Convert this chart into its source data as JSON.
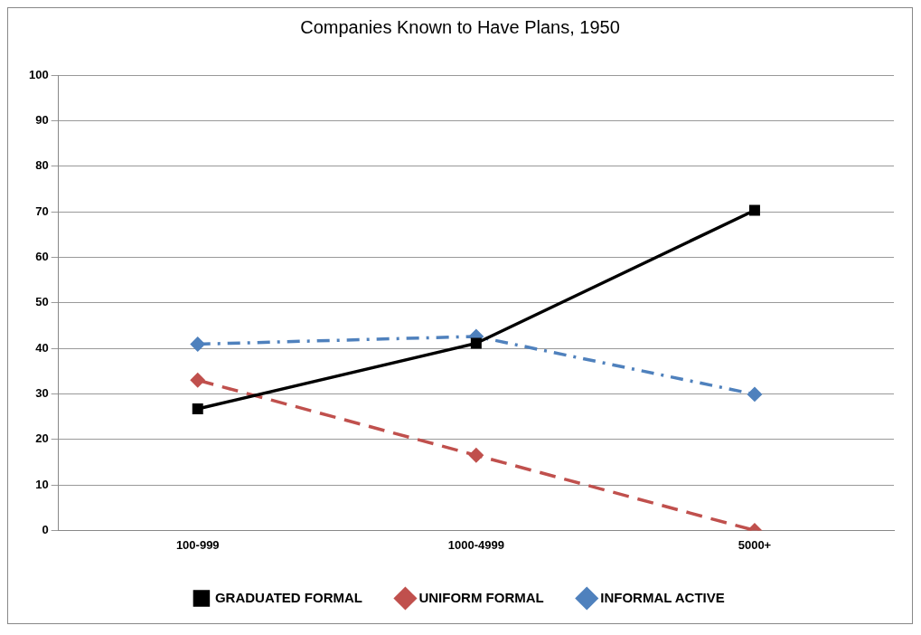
{
  "chart_data": {
    "type": "line",
    "title": "Companies Known to Have Plans, 1950",
    "categories": [
      "100-999",
      "1000-4999",
      "5000+"
    ],
    "ylim": [
      0,
      100
    ],
    "yticks": [
      0,
      10,
      20,
      30,
      40,
      50,
      60,
      70,
      80,
      90,
      100
    ],
    "grid": "y",
    "legend": "bottom",
    "series": [
      {
        "name": "GRADUATED FORMAL",
        "color": "#000000",
        "values": [
          26.7,
          41.1,
          70.3
        ],
        "marker": "square",
        "line_style": "solid"
      },
      {
        "name": "UNIFORM FORMAL",
        "color": "#c0504d",
        "values": [
          33.0,
          16.5,
          0
        ],
        "marker": "diamond",
        "line_style": "dashed"
      },
      {
        "name": "INFORMAL ACTIVE",
        "color": "#4f81bd",
        "values": [
          40.9,
          42.6,
          29.9
        ],
        "marker": "diamond",
        "line_style": "dashdot"
      }
    ]
  }
}
